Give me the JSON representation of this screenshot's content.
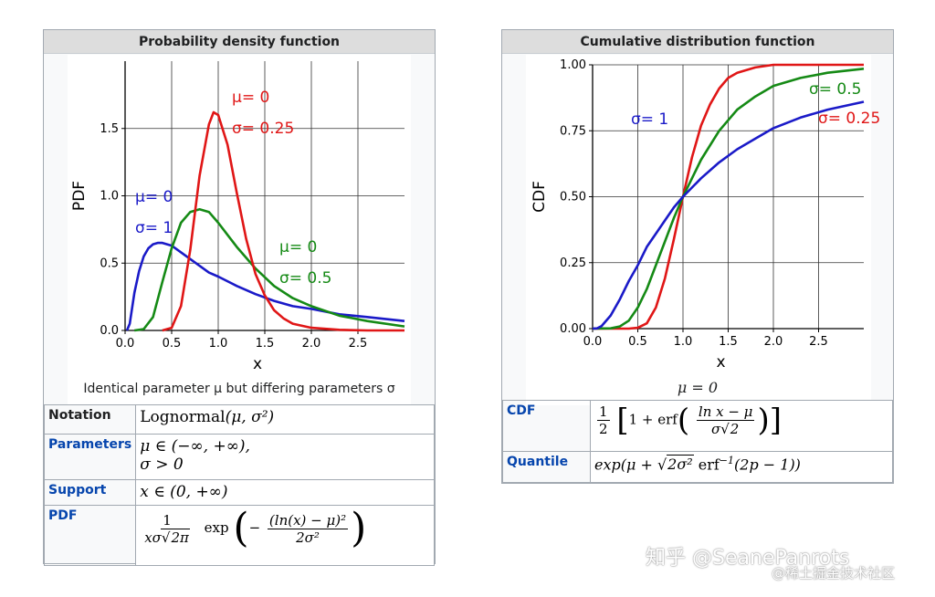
{
  "pdf_box": {
    "title": "Probability density function",
    "caption": "Identical parameter μ but differing parameters σ",
    "rows": [
      {
        "label": "Notation"
      },
      {
        "label": "Parameters"
      },
      {
        "label": "Support"
      },
      {
        "label": "PDF"
      }
    ]
  },
  "cdf_box": {
    "title": "Cumulative distribution function",
    "caption": "μ = 0",
    "rows": [
      {
        "label": "CDF"
      },
      {
        "label": "Quantile"
      }
    ]
  },
  "formulas": {
    "notation_name": "Lognormal",
    "notation_args": "(μ, σ²)",
    "param_1": "μ ∈ (−∞, +∞),",
    "param_2": "σ > 0",
    "support": "x ∈ (0, +∞)",
    "pdf_num": "1",
    "pdf_den_a": "xσ",
    "pdf_den_sqrt": "2π",
    "pdf_exp": "exp",
    "pdf_inner_num": "(ln(x) − μ)²",
    "pdf_inner_den": "2σ²",
    "cdf_half_num": "1",
    "cdf_half_den": "2",
    "cdf_one_plus_erf": "1 + erf",
    "cdf_inner_num": "ln x − μ",
    "cdf_inner_den_a": "σ",
    "cdf_inner_den_sqrt": "2",
    "quantile_a": "exp(μ + ",
    "quantile_sqrt": "2σ²",
    "quantile_b": " erf",
    "quantile_sup": "−1",
    "quantile_c": "(2p − 1))"
  },
  "watermark": {
    "line1": "知乎 @SeanePanrots",
    "line2": "@稀土掘金技术社区"
  },
  "chart_data": [
    {
      "type": "line",
      "xlabel": "x",
      "ylabel": "PDF",
      "xlim": [
        0,
        3
      ],
      "ylim": [
        0,
        2
      ],
      "xticks": [
        "0.0",
        "0.5",
        "1.0",
        "1.5",
        "2.0",
        "2.5"
      ],
      "yticks": [
        "0.0",
        "0.5",
        "1.0",
        "1.5"
      ],
      "grid": true,
      "series": [
        {
          "color": "#1a1ac8",
          "label1": "μ= 0",
          "label2": "σ= 1",
          "x": [
            0.02,
            0.05,
            0.1,
            0.15,
            0.2,
            0.25,
            0.3,
            0.35,
            0.4,
            0.5,
            0.6,
            0.7,
            0.8,
            0.9,
            1.0,
            1.2,
            1.4,
            1.6,
            1.8,
            2.0,
            2.3,
            2.6,
            3.0
          ],
          "y": [
            0.0,
            0.05,
            0.28,
            0.44,
            0.55,
            0.61,
            0.64,
            0.65,
            0.65,
            0.63,
            0.58,
            0.53,
            0.48,
            0.43,
            0.4,
            0.33,
            0.27,
            0.22,
            0.18,
            0.16,
            0.12,
            0.1,
            0.07
          ]
        },
        {
          "color": "#158a15",
          "label1": "μ= 0",
          "label2": "σ= 0.5",
          "x": [
            0.1,
            0.2,
            0.3,
            0.4,
            0.5,
            0.6,
            0.7,
            0.8,
            0.9,
            1.0,
            1.1,
            1.2,
            1.4,
            1.6,
            1.8,
            2.0,
            2.3,
            2.6,
            3.0
          ],
          "y": [
            0.0,
            0.01,
            0.1,
            0.36,
            0.61,
            0.8,
            0.88,
            0.9,
            0.88,
            0.8,
            0.71,
            0.62,
            0.46,
            0.33,
            0.24,
            0.18,
            0.11,
            0.07,
            0.03
          ]
        },
        {
          "color": "#e01616",
          "label1": "μ= 0",
          "label2": "σ= 0.25",
          "x": [
            0.4,
            0.5,
            0.6,
            0.7,
            0.8,
            0.9,
            0.95,
            1.0,
            1.1,
            1.2,
            1.3,
            1.4,
            1.5,
            1.6,
            1.7,
            1.8,
            2.0,
            2.3,
            2.6,
            3.0
          ],
          "y": [
            0.0,
            0.02,
            0.18,
            0.6,
            1.15,
            1.53,
            1.62,
            1.6,
            1.38,
            1.02,
            0.68,
            0.42,
            0.26,
            0.15,
            0.09,
            0.05,
            0.02,
            0.005,
            0.0,
            0.0
          ]
        }
      ]
    },
    {
      "type": "line",
      "xlabel": "x",
      "ylabel": "CDF",
      "xlim": [
        0,
        3
      ],
      "ylim": [
        0,
        1
      ],
      "xticks": [
        "0.0",
        "0.5",
        "1.0",
        "1.5",
        "2.0",
        "2.5"
      ],
      "yticks": [
        "0.00",
        "0.25",
        "0.50",
        "0.75",
        "1.00"
      ],
      "grid": true,
      "series": [
        {
          "color": "#e01616",
          "label": "σ= 0.25",
          "x": [
            0.0,
            0.4,
            0.5,
            0.6,
            0.7,
            0.8,
            0.9,
            1.0,
            1.1,
            1.2,
            1.3,
            1.4,
            1.5,
            1.6,
            1.8,
            2.0,
            3.0
          ],
          "y": [
            0.0,
            0.0,
            0.003,
            0.02,
            0.08,
            0.19,
            0.34,
            0.5,
            0.65,
            0.77,
            0.85,
            0.91,
            0.95,
            0.97,
            0.99,
            1.0,
            1.0
          ]
        },
        {
          "color": "#158a15",
          "label": "σ= 0.5",
          "x": [
            0.0,
            0.2,
            0.3,
            0.4,
            0.5,
            0.6,
            0.7,
            0.8,
            0.9,
            1.0,
            1.2,
            1.4,
            1.6,
            1.8,
            2.0,
            2.3,
            2.6,
            3.0
          ],
          "y": [
            0.0,
            0.001,
            0.008,
            0.03,
            0.08,
            0.15,
            0.24,
            0.33,
            0.42,
            0.5,
            0.64,
            0.75,
            0.83,
            0.88,
            0.92,
            0.95,
            0.97,
            0.985
          ]
        },
        {
          "color": "#1a1ac8",
          "label": "σ= 1",
          "x": [
            0.0,
            0.05,
            0.1,
            0.2,
            0.3,
            0.4,
            0.5,
            0.6,
            0.7,
            0.8,
            0.9,
            1.0,
            1.2,
            1.4,
            1.6,
            1.8,
            2.0,
            2.3,
            2.6,
            3.0
          ],
          "y": [
            0.0,
            0.001,
            0.01,
            0.05,
            0.11,
            0.18,
            0.24,
            0.31,
            0.36,
            0.41,
            0.46,
            0.5,
            0.57,
            0.63,
            0.68,
            0.72,
            0.76,
            0.8,
            0.83,
            0.86
          ]
        }
      ]
    }
  ]
}
